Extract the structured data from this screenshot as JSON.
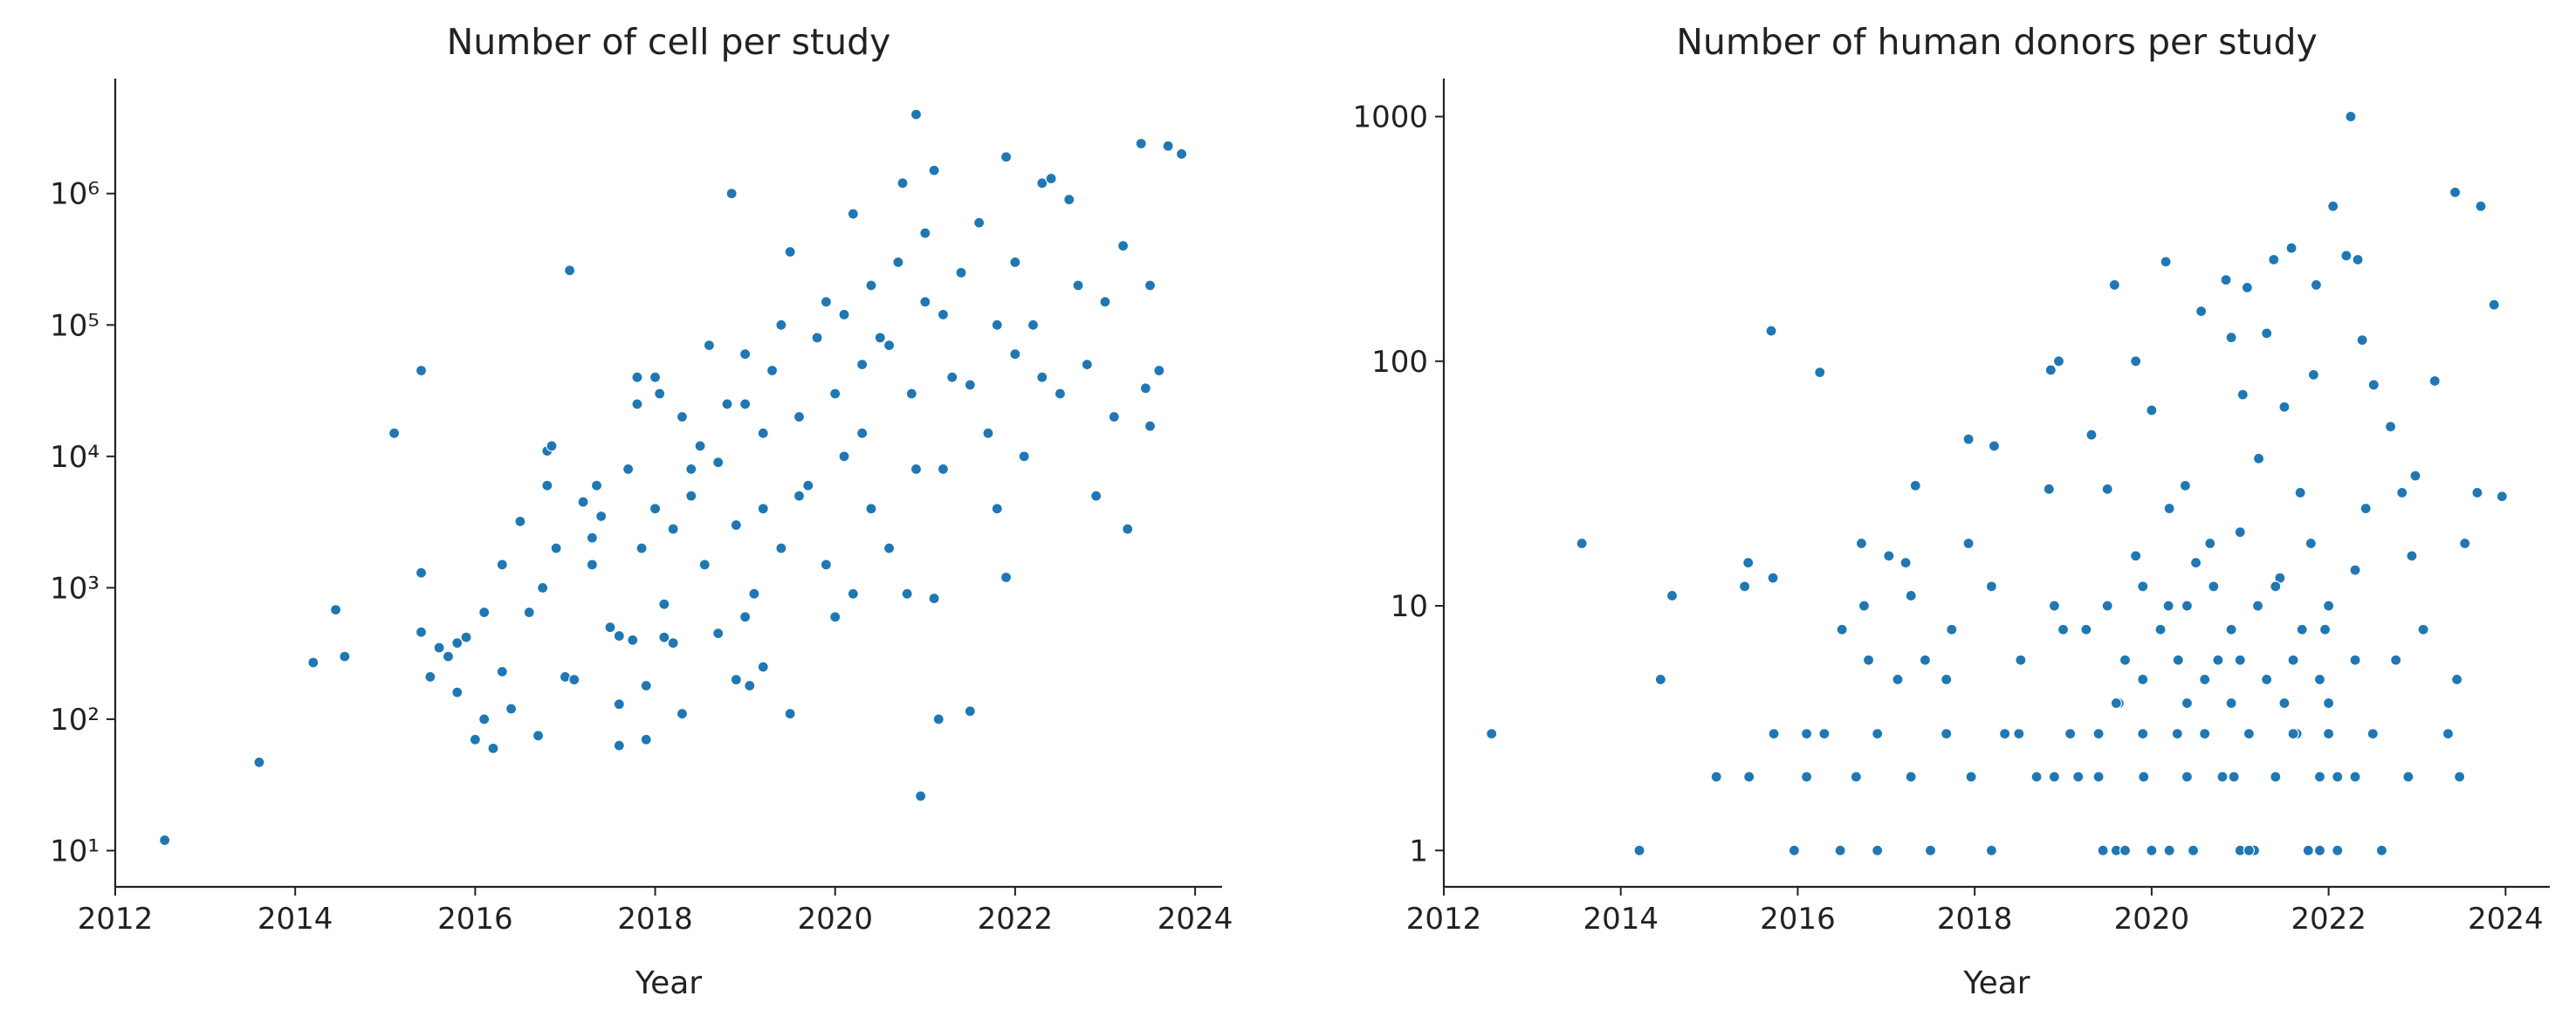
{
  "chart_data": [
    {
      "type": "scatter",
      "title": "Number of cell per study",
      "x_label": "Year",
      "color": "#1f77b4",
      "y_log": true,
      "xlim": [
        2012,
        2024.3
      ],
      "xticks": [
        2012,
        2014,
        2016,
        2018,
        2020,
        2022,
        2024
      ],
      "ylim": [
        5.3,
        7500000
      ],
      "yticks": [
        {
          "value": 10,
          "label": "10¹"
        },
        {
          "value": 100,
          "label": "10²"
        },
        {
          "value": 1000,
          "label": "10³"
        },
        {
          "value": 10000,
          "label": "10⁴"
        },
        {
          "value": 100000,
          "label": "10⁵"
        },
        {
          "value": 1000000,
          "label": "10⁶"
        }
      ],
      "x": [
        2012.55,
        2013.6,
        2014.2,
        2014.45,
        2014.55,
        2015.1,
        2015.4,
        2015.4,
        2015.4,
        2015.5,
        2015.6,
        2015.7,
        2015.8,
        2015.8,
        2015.9,
        2016.0,
        2016.1,
        2016.1,
        2016.2,
        2016.3,
        2016.3,
        2016.4,
        2016.5,
        2016.6,
        2016.7,
        2016.75,
        2016.8,
        2016.8,
        2016.85,
        2016.9,
        2017.0,
        2017.05,
        2017.1,
        2017.2,
        2017.3,
        2017.3,
        2017.35,
        2017.4,
        2017.5,
        2017.6,
        2017.6,
        2017.6,
        2017.7,
        2017.75,
        2017.8,
        2017.8,
        2017.85,
        2017.9,
        2017.9,
        2018.0,
        2018.0,
        2018.05,
        2018.1,
        2018.1,
        2018.2,
        2018.2,
        2018.3,
        2018.3,
        2018.4,
        2018.4,
        2018.5,
        2018.55,
        2018.6,
        2018.7,
        2018.8,
        2018.85,
        2018.9,
        2018.9,
        2019.0,
        2019.0,
        2019.05,
        2019.1,
        2019.2,
        2019.2,
        2019.3,
        2019.4,
        2019.4,
        2019.5,
        2019.5,
        2019.6,
        2019.7,
        2019.8,
        2019.9,
        2019.9,
        2020.0,
        2020.0,
        2020.1,
        2020.2,
        2020.2,
        2020.3,
        2020.4,
        2020.4,
        2020.5,
        2020.6,
        2020.7,
        2020.75,
        2020.8,
        2020.85,
        2020.9,
        2020.95,
        2021.0,
        2021.0,
        2021.1,
        2021.1,
        2021.15,
        2021.2,
        2021.3,
        2021.4,
        2021.5,
        2021.6,
        2021.7,
        2021.8,
        2021.9,
        2021.9,
        2022.0,
        2022.0,
        2022.1,
        2022.2,
        2022.3,
        2022.4,
        2022.5,
        2022.6,
        2022.7,
        2022.8,
        2022.9,
        2023.0,
        2023.1,
        2023.2,
        2023.25,
        2023.4,
        2023.45,
        2023.5,
        2023.5,
        2023.6,
        2023.7,
        2023.85,
        2020.3,
        2020.6,
        2021.2,
        2021.5,
        2019.6,
        2019.2,
        2020.9,
        2021.8,
        2022.3,
        2019.0,
        2018.7,
        2020.1
      ],
      "values": [
        12,
        47,
        270,
        680,
        300,
        15000,
        45000,
        1300,
        460,
        210,
        350,
        300,
        380,
        160,
        420,
        70,
        100,
        650,
        60,
        230,
        1500,
        120,
        3200,
        650,
        75,
        1000,
        6000,
        11000,
        12000,
        2000,
        210,
        260000,
        200,
        4500,
        2400,
        1500,
        6000,
        3500,
        500,
        430,
        130,
        63,
        8000,
        400,
        25000,
        40000,
        2000,
        70,
        180,
        4000,
        40000,
        30000,
        750,
        420,
        2800,
        380,
        20000,
        110,
        8000,
        5000,
        12000,
        1500,
        70000,
        450,
        25000,
        1000000,
        3000,
        200,
        60000,
        600,
        180,
        900,
        15000,
        250,
        45000,
        2000,
        100000,
        360000,
        110,
        20000,
        6000,
        80000,
        150000,
        1500,
        30000,
        600,
        10000,
        700000,
        900,
        50000,
        200000,
        4000,
        80000,
        2000,
        300000,
        1200000,
        900,
        30000,
        4000000,
        26,
        150000,
        500000,
        1500000,
        830,
        100,
        8000,
        40000,
        250000,
        115,
        600000,
        15000,
        4000,
        1200,
        1900000,
        300000,
        60000,
        10000,
        100000,
        1200000,
        1300000,
        30000,
        900000,
        200000,
        50000,
        5000,
        150000,
        20000,
        400000,
        2800,
        2400000,
        33000,
        200000,
        17000,
        45000,
        2300000,
        2000000,
        15000,
        70000,
        120000,
        35000,
        5000,
        4000,
        8000,
        100000,
        40000,
        25000,
        9000,
        120000
      ]
    },
    {
      "type": "scatter",
      "title": "Number of human donors per study",
      "x_label": "Year",
      "color": "#1f77b4",
      "y_log": true,
      "xlim": [
        2012,
        2024.5
      ],
      "xticks": [
        2012,
        2014,
        2016,
        2018,
        2020,
        2022,
        2024
      ],
      "ylim": [
        0.71,
        1430
      ],
      "yticks": [
        1,
        10,
        100,
        1000
      ],
      "x": [
        2012.54,
        2013.56,
        2014.21,
        2014.45,
        2014.58,
        2015.08,
        2015.4,
        2015.44,
        2015.45,
        2015.7,
        2015.72,
        2015.73,
        2015.96,
        2016.25,
        2016.1,
        2016.1,
        2016.3,
        2016.48,
        2016.5,
        2016.72,
        2016.66,
        2016.75,
        2016.8,
        2016.9,
        2016.9,
        2017.03,
        2017.13,
        2017.22,
        2017.28,
        2017.33,
        2017.28,
        2017.44,
        2017.5,
        2017.68,
        2017.74,
        2017.93,
        2017.93,
        2017.68,
        2017.96,
        2018.19,
        2018.22,
        2018.19,
        2018.34,
        2018.52,
        2018.7,
        2018.84,
        2018.86,
        2018.95,
        2018.9,
        2019.08,
        2019.17,
        2019.26,
        2019.32,
        2019.45,
        2019.5,
        2019.58,
        2019.63,
        2019.82,
        2019.82,
        2019.91,
        2020.0,
        2020.16,
        2020.19,
        2020.29,
        2020.38,
        2020.47,
        2020.56,
        2020.66,
        2020.75,
        2020.84,
        2020.9,
        2020.93,
        2021.03,
        2021.08,
        2021.16,
        2021.21,
        2021.3,
        2021.38,
        2021.45,
        2021.5,
        2021.58,
        2021.64,
        2021.68,
        2021.77,
        2021.83,
        2021.86,
        2021.96,
        2022.05,
        2022.1,
        2022.2,
        2022.25,
        2022.33,
        2022.38,
        2022.42,
        2022.51,
        2022.6,
        2022.7,
        2022.76,
        2022.83,
        2022.9,
        2022.94,
        2022.98,
        2023.07,
        2023.2,
        2023.35,
        2023.43,
        2023.45,
        2023.48,
        2023.54,
        2023.68,
        2023.72,
        2023.87,
        2023.96,
        2019.6,
        2019.7,
        2020.0,
        2020.2,
        2021.0,
        2021.1,
        2021.9,
        2022.1,
        2018.9,
        2019.4,
        2020.4,
        2020.8,
        2021.4,
        2021.9,
        2022.3,
        2018.5,
        2019.4,
        2019.9,
        2020.6,
        2021.1,
        2021.6,
        2022.0,
        2022.5,
        2019.6,
        2020.4,
        2020.9,
        2021.5,
        2022.0,
        2019.9,
        2020.6,
        2021.3,
        2021.9,
        2019.7,
        2020.3,
        2021.0,
        2021.6,
        2022.3,
        2019.0,
        2020.1,
        2020.9,
        2021.7,
        2019.5,
        2020.4,
        2021.2,
        2022.0,
        2019.9,
        2020.7,
        2021.4,
        2020.5,
        2021.0,
        2021.8,
        2020.2,
        2022.3
      ],
      "values": [
        3,
        18,
        1,
        5,
        11,
        2,
        12,
        15,
        2,
        133,
        13,
        3,
        1,
        90,
        2,
        3,
        3,
        1,
        8,
        18,
        2,
        10,
        6,
        3,
        1,
        16,
        5,
        15,
        11,
        31,
        2,
        6,
        1,
        5,
        8,
        48,
        18,
        3,
        2,
        1,
        45,
        12,
        3,
        6,
        2,
        30,
        92,
        100,
        10,
        3,
        2,
        8,
        50,
        1,
        30,
        205,
        4,
        100,
        16,
        2,
        63,
        255,
        10,
        3,
        31,
        1,
        160,
        18,
        6,
        215,
        125,
        2,
        73,
        200,
        1,
        40,
        130,
        260,
        13,
        65,
        290,
        3,
        29,
        1,
        88,
        205,
        8,
        430,
        2,
        270,
        1000,
        260,
        122,
        25,
        80,
        1,
        54,
        6,
        29,
        2,
        16,
        34,
        8,
        83,
        3,
        490,
        5,
        2,
        18,
        29,
        430,
        170,
        28,
        1,
        1,
        1,
        1,
        1,
        1,
        1,
        1,
        2,
        2,
        2,
        2,
        2,
        2,
        2,
        3,
        3,
        3,
        3,
        3,
        3,
        3,
        3,
        4,
        4,
        4,
        4,
        4,
        5,
        5,
        5,
        5,
        6,
        6,
        6,
        6,
        6,
        8,
        8,
        8,
        8,
        10,
        10,
        10,
        10,
        12,
        12,
        12,
        15,
        20,
        18,
        25,
        14
      ]
    }
  ]
}
